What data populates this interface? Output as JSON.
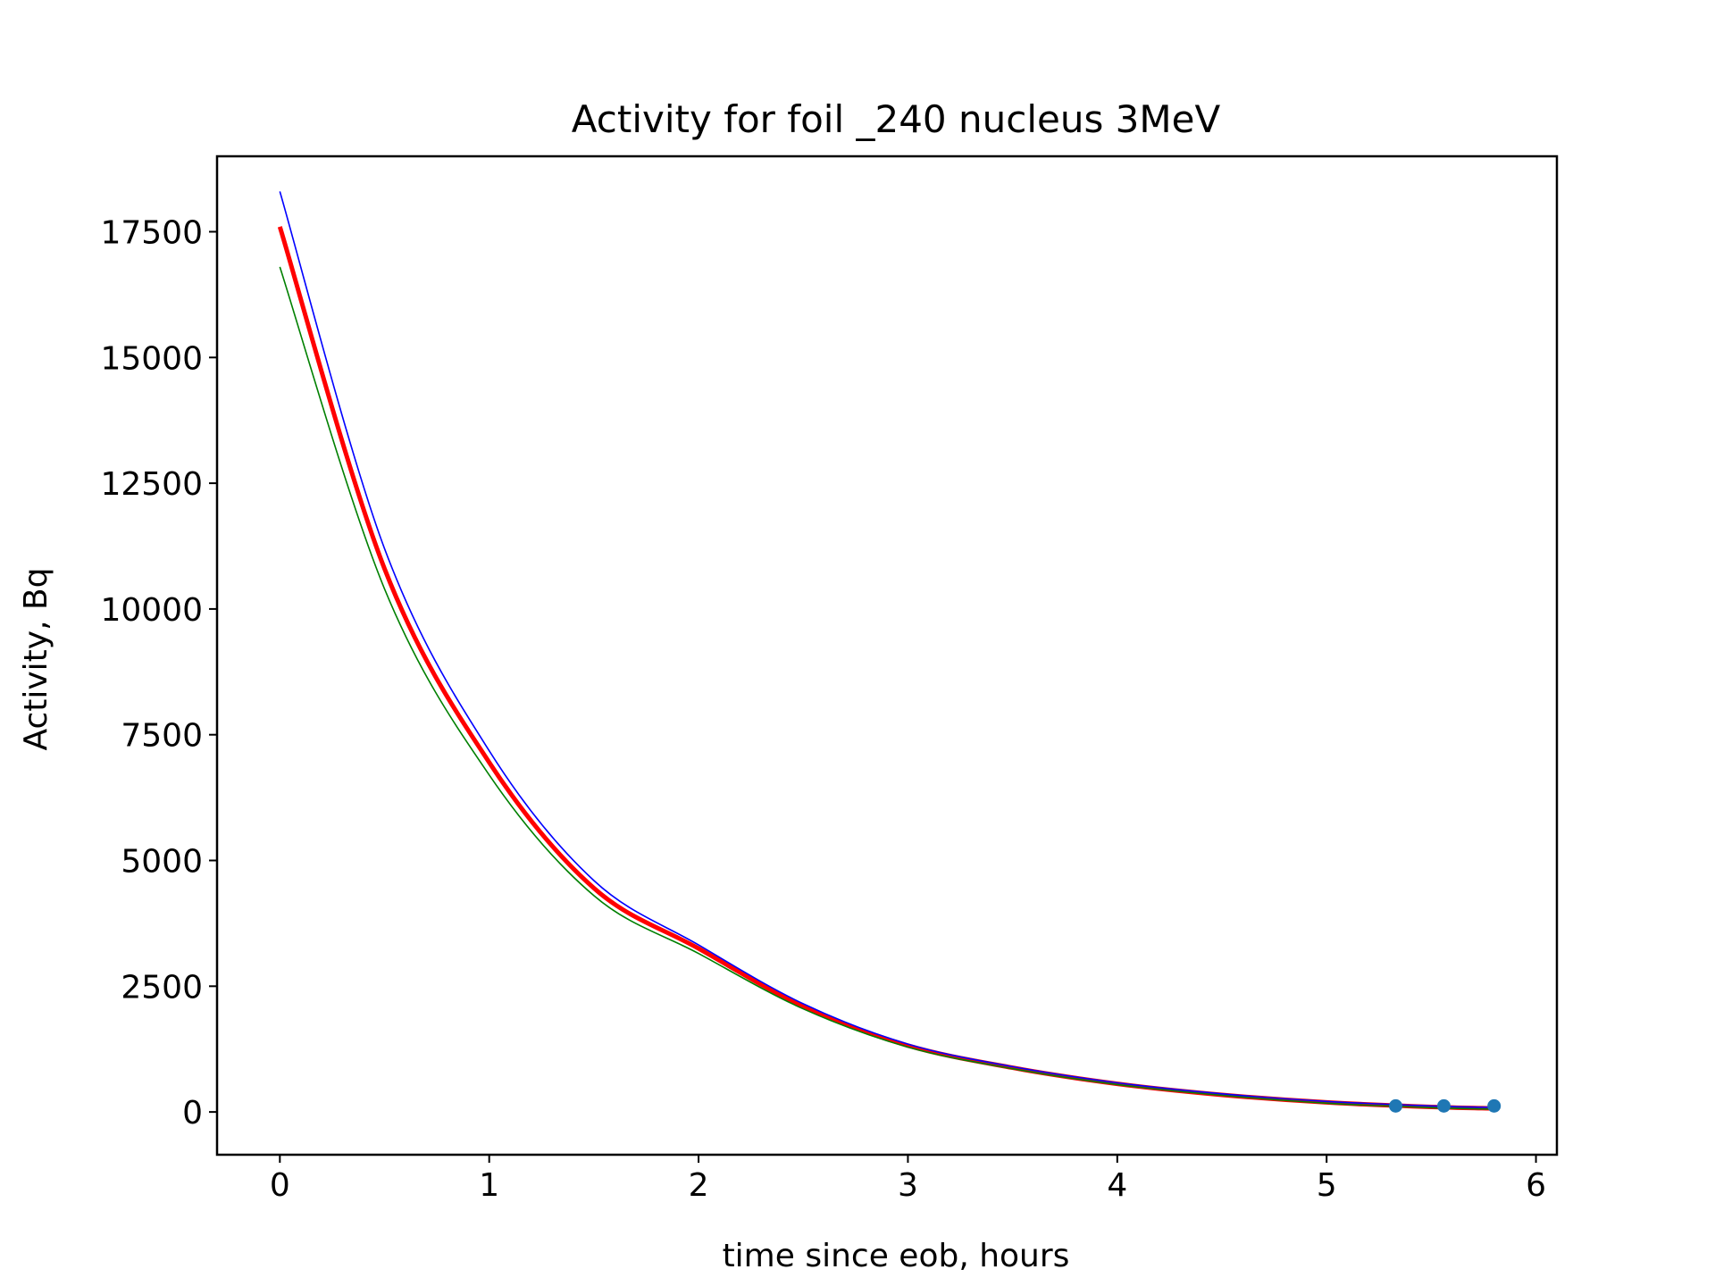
{
  "chart_data": {
    "type": "line",
    "title": "Activity for foil _240 nucleus 3MeV",
    "xlabel": "time since eob, hours",
    "ylabel": "Activity, Bq",
    "xlim": [
      -0.3,
      6.1
    ],
    "ylim": [
      -850,
      19000
    ],
    "xticks": [
      0,
      1,
      2,
      3,
      4,
      5,
      6
    ],
    "yticks": [
      0,
      2500,
      5000,
      7500,
      10000,
      12500,
      15000,
      17500
    ],
    "grid": false,
    "series": [
      {
        "color": "#0000ff",
        "style": "thin-line",
        "x": [
          0,
          0.5,
          1,
          1.5,
          2,
          2.5,
          3,
          3.5,
          4,
          4.5,
          5,
          5.5,
          5.8
        ],
        "y": [
          18300,
          11200,
          7180,
          4600,
          3320,
          2150,
          1350,
          900,
          580,
          360,
          210,
          120,
          90
        ]
      },
      {
        "color": "#ff0000",
        "style": "thick-line",
        "x": [
          0,
          0.5,
          1,
          1.5,
          2,
          2.5,
          3,
          3.5,
          4,
          4.5,
          5,
          5.5,
          5.8
        ],
        "y": [
          17600,
          10800,
          6950,
          4450,
          3250,
          2100,
          1320,
          880,
          560,
          340,
          190,
          100,
          70
        ]
      },
      {
        "color": "#008000",
        "style": "thin-line",
        "x": [
          0,
          0.5,
          1,
          1.5,
          2,
          2.5,
          3,
          3.5,
          4,
          4.5,
          5,
          5.5,
          5.8
        ],
        "y": [
          16800,
          10400,
          6700,
          4300,
          3150,
          2050,
          1290,
          860,
          545,
          330,
          175,
          85,
          55
        ]
      },
      {
        "color": "#1f77b4",
        "style": "points",
        "x": [
          5.33,
          5.56,
          5.8
        ],
        "y": [
          120,
          120,
          120
        ]
      }
    ]
  }
}
